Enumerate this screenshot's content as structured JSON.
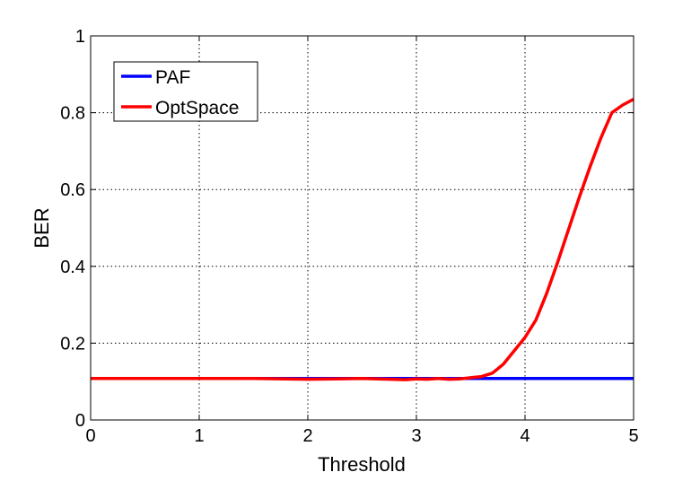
{
  "chart_data": {
    "type": "line",
    "title": "",
    "xlabel": "Threshold",
    "ylabel": "BER",
    "xlim": [
      0,
      5
    ],
    "ylim": [
      0,
      1
    ],
    "xticks": [
      0,
      1,
      2,
      3,
      4,
      5
    ],
    "yticks": [
      0,
      0.2,
      0.4,
      0.6,
      0.8,
      1
    ],
    "xtick_labels": [
      "0",
      "1",
      "2",
      "3",
      "4",
      "5"
    ],
    "ytick_labels": [
      "0",
      "0.2",
      "0.4",
      "0.6",
      "0.8",
      "1"
    ],
    "grid": true,
    "grid_style": "dotted",
    "legend_position": "top-left",
    "series": [
      {
        "name": "PAF",
        "color": "#0000ff",
        "x": [
          0,
          0.5,
          1,
          1.5,
          2,
          2.5,
          3,
          3.5,
          4,
          4.5,
          5
        ],
        "y": [
          0.108,
          0.108,
          0.108,
          0.108,
          0.108,
          0.108,
          0.108,
          0.108,
          0.108,
          0.108,
          0.108
        ]
      },
      {
        "name": "OptSpace",
        "color": "#ff0000",
        "x": [
          0,
          0.5,
          1,
          1.5,
          2,
          2.5,
          2.9,
          3.0,
          3.1,
          3.2,
          3.3,
          3.4,
          3.5,
          3.6,
          3.7,
          3.8,
          3.9,
          4.0,
          4.1,
          4.2,
          4.3,
          4.4,
          4.5,
          4.6,
          4.7,
          4.8,
          4.9,
          5.0
        ],
        "y": [
          0.108,
          0.108,
          0.108,
          0.108,
          0.106,
          0.108,
          0.105,
          0.107,
          0.106,
          0.108,
          0.106,
          0.107,
          0.11,
          0.113,
          0.122,
          0.145,
          0.18,
          0.215,
          0.26,
          0.33,
          0.41,
          0.495,
          0.58,
          0.66,
          0.735,
          0.8,
          0.82,
          0.835
        ]
      }
    ]
  }
}
